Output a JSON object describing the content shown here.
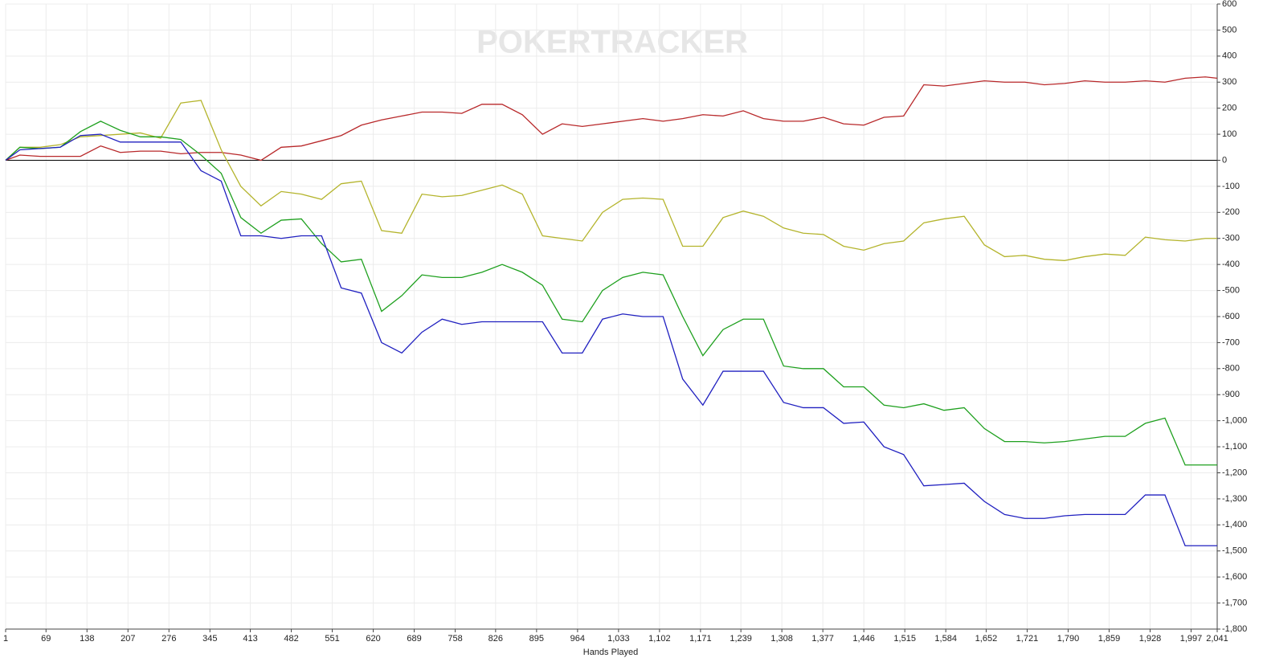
{
  "chart_data": {
    "type": "line",
    "watermark": "POKERTRACKER",
    "x_label": "Hands Played",
    "x": [
      1,
      25,
      59,
      93,
      127,
      161,
      194,
      228,
      262,
      296,
      330,
      364,
      397,
      431,
      465,
      499,
      533,
      566,
      600,
      634,
      668,
      702,
      736,
      769,
      803,
      837,
      871,
      905,
      938,
      972,
      1006,
      1040,
      1074,
      1108,
      1141,
      1175,
      1209,
      1243,
      1277,
      1311,
      1344,
      1378,
      1412,
      1446,
      1480,
      1513,
      1547,
      1581,
      1615,
      1649,
      1683,
      1717,
      1750,
      1784,
      1818,
      1852,
      1886,
      1920,
      1953,
      1987,
      2021,
      2041
    ],
    "series": [
      {
        "color": "#b8282a",
        "values": [
          0,
          20,
          15,
          15,
          15,
          55,
          30,
          35,
          35,
          25,
          30,
          30,
          20,
          0,
          50,
          55,
          75,
          95,
          135,
          155,
          170,
          185,
          185,
          180,
          215,
          215,
          175,
          100,
          140,
          130,
          140,
          150,
          160,
          150,
          160,
          175,
          170,
          190,
          160,
          150,
          150,
          165,
          140,
          135,
          165,
          170,
          290,
          285,
          295,
          305,
          300,
          300,
          290,
          295,
          305,
          300,
          300,
          305,
          300,
          315,
          320,
          315
        ]
      },
      {
        "color": "#b4b42c",
        "values": [
          0,
          50,
          50,
          60,
          90,
          95,
          100,
          105,
          85,
          220,
          230,
          40,
          -100,
          -175,
          -120,
          -130,
          -150,
          -90,
          -80,
          -270,
          -280,
          -130,
          -140,
          -135,
          -115,
          -95,
          -130,
          -290,
          -300,
          -310,
          -200,
          -150,
          -145,
          -150,
          -330,
          -330,
          -220,
          -195,
          -215,
          -260,
          -280,
          -285,
          -330,
          -345,
          -320,
          -310,
          -240,
          -225,
          -215,
          -325,
          -370,
          -365,
          -380,
          -385,
          -370,
          -360,
          -365,
          -295,
          -305,
          -310,
          -300,
          -300
        ]
      },
      {
        "color": "#1ea01e",
        "values": [
          0,
          50,
          45,
          50,
          110,
          150,
          115,
          90,
          90,
          80,
          20,
          -50,
          -220,
          -280,
          -230,
          -225,
          -320,
          -390,
          -380,
          -580,
          -520,
          -440,
          -450,
          -450,
          -430,
          -400,
          -430,
          -480,
          -610,
          -620,
          -500,
          -450,
          -430,
          -440,
          -600,
          -750,
          -650,
          -610,
          -610,
          -790,
          -800,
          -800,
          -870,
          -870,
          -940,
          -950,
          -935,
          -960,
          -950,
          -1030,
          -1080,
          -1080,
          -1085,
          -1080,
          -1070,
          -1060,
          -1060,
          -1010,
          -990,
          -1170,
          -1170,
          -1170
        ]
      },
      {
        "color": "#2020c0",
        "values": [
          0,
          40,
          45,
          50,
          95,
          100,
          70,
          70,
          70,
          70,
          -40,
          -80,
          -290,
          -290,
          -300,
          -290,
          -290,
          -490,
          -510,
          -700,
          -740,
          -660,
          -610,
          -630,
          -620,
          -620,
          -620,
          -620,
          -740,
          -740,
          -610,
          -590,
          -600,
          -600,
          -840,
          -940,
          -810,
          -810,
          -810,
          -930,
          -950,
          -950,
          -1010,
          -1005,
          -1100,
          -1130,
          -1250,
          -1245,
          -1240,
          -1310,
          -1360,
          -1375,
          -1375,
          -1365,
          -1360,
          -1360,
          -1360,
          -1285,
          -1285,
          -1480,
          -1480,
          -1480
        ]
      }
    ],
    "xlim": [
      1,
      2041
    ],
    "xticks": [
      1,
      69,
      138,
      207,
      276,
      345,
      413,
      482,
      551,
      620,
      689,
      758,
      826,
      895,
      964,
      {
        "value": 1033,
        "label": "1,033"
      },
      {
        "value": 1102,
        "label": "1,102"
      },
      {
        "value": 1171,
        "label": "1,171"
      },
      {
        "value": 1239,
        "label": "1,239"
      },
      {
        "value": 1308,
        "label": "1,308"
      },
      {
        "value": 1377,
        "label": "1,377"
      },
      {
        "value": 1446,
        "label": "1,446"
      },
      {
        "value": 1515,
        "label": "1,515"
      },
      {
        "value": 1584,
        "label": "1,584"
      },
      {
        "value": 1652,
        "label": "1,652"
      },
      {
        "value": 1721,
        "label": "1,721"
      },
      {
        "value": 1790,
        "label": "1,790"
      },
      {
        "value": 1859,
        "label": "1,859"
      },
      {
        "value": 1928,
        "label": "1,928"
      },
      {
        "value": 1997,
        "label": "1,997"
      },
      {
        "value": 2041,
        "label": "2,041"
      }
    ],
    "ylim": [
      -1800,
      600
    ],
    "yticks": [
      {
        "value": -1800,
        "label": "-1,800"
      },
      {
        "value": -1700,
        "label": "-1,700"
      },
      {
        "value": -1600,
        "label": "-1,600"
      },
      {
        "value": -1500,
        "label": "-1,500"
      },
      {
        "value": -1400,
        "label": "-1,400"
      },
      {
        "value": -1300,
        "label": "-1,300"
      },
      {
        "value": -1200,
        "label": "-1,200"
      },
      {
        "value": -1100,
        "label": "-1,100"
      },
      {
        "value": -1000,
        "label": "-1,000"
      },
      -900,
      -800,
      -700,
      -600,
      -500,
      -400,
      -300,
      -200,
      -100,
      0,
      100,
      200,
      300,
      400,
      500,
      600
    ],
    "grid": true
  }
}
